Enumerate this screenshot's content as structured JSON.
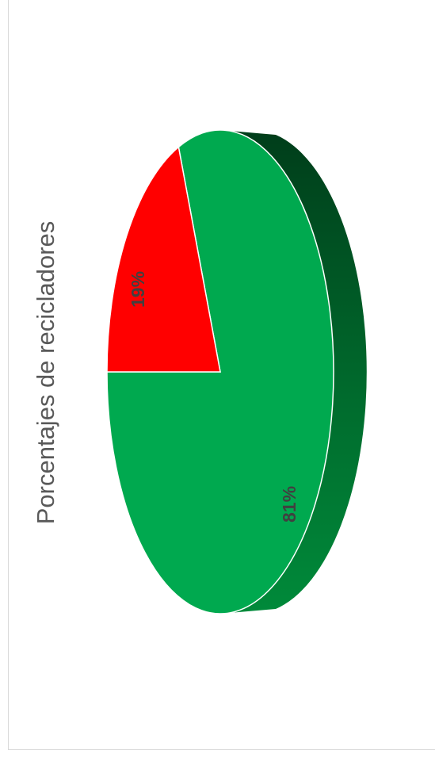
{
  "chart_data": {
    "type": "pie",
    "title": "Porcentajes de recicladores",
    "slices": [
      {
        "label": "",
        "value": 81,
        "data_label": "81%",
        "color": "#00a94f"
      },
      {
        "label": "",
        "value": 19,
        "data_label": "19%",
        "color": "#ff0000"
      }
    ],
    "style": "3d",
    "side_color_dark": "#003d1a",
    "side_color_light": "#008a3a",
    "orientation": "rotated-90"
  }
}
